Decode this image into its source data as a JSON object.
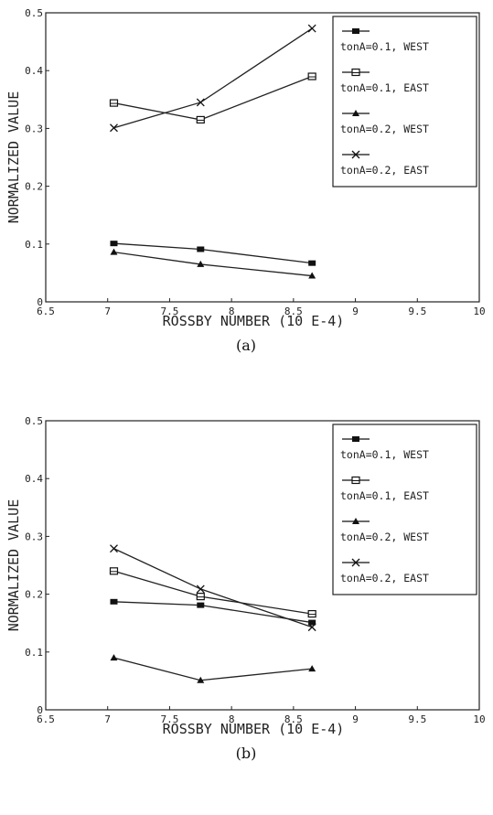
{
  "chart_data": [
    {
      "type": "line",
      "caption": "(a)",
      "xlabel": "ROSSBY NUMBER (10 E-4)",
      "ylabel": "NORMALIZED VALUE",
      "xlim": [
        6.5,
        10
      ],
      "ylim": [
        0,
        0.5
      ],
      "xticks": [
        "6.5",
        "7",
        "7.5",
        "8",
        "8.5",
        "9",
        "9.5",
        "10"
      ],
      "yticks": [
        "0",
        "0.1",
        "0.2",
        "0.3",
        "0.4",
        "0.5"
      ],
      "grid": false,
      "legend_position": "top-right",
      "x": [
        7.05,
        7.75,
        8.65
      ],
      "series": [
        {
          "name": "tonA=0.1, WEST",
          "marker": "filled-square",
          "values": [
            0.101,
            0.091,
            0.067
          ]
        },
        {
          "name": "tonA=0.1, EAST",
          "marker": "open-square",
          "values": [
            0.344,
            0.315,
            0.39
          ]
        },
        {
          "name": "tonA=0.2, WEST",
          "marker": "filled-triangle",
          "values": [
            0.086,
            0.065,
            0.045
          ]
        },
        {
          "name": "tonA=0.2, EAST",
          "marker": "x",
          "values": [
            0.301,
            0.345,
            0.473
          ]
        }
      ]
    },
    {
      "type": "line",
      "caption": "(b)",
      "xlabel": "ROSSBY NUMBER (10 E-4)",
      "ylabel": "NORMALIZED VALUE",
      "xlim": [
        6.5,
        10
      ],
      "ylim": [
        0,
        0.5
      ],
      "xticks": [
        "6.5",
        "7",
        "7.5",
        "8",
        "8.5",
        "9",
        "9.5",
        "10"
      ],
      "yticks": [
        "0",
        "0.1",
        "0.2",
        "0.3",
        "0.4",
        "0.5"
      ],
      "grid": false,
      "legend_position": "top-right",
      "x": [
        7.05,
        7.75,
        8.65
      ],
      "series": [
        {
          "name": "tonA=0.1, WEST",
          "marker": "filled-square",
          "values": [
            0.187,
            0.181,
            0.151
          ]
        },
        {
          "name": "tonA=0.1, EAST",
          "marker": "open-square",
          "values": [
            0.24,
            0.196,
            0.166
          ]
        },
        {
          "name": "tonA=0.2, WEST",
          "marker": "filled-triangle",
          "values": [
            0.09,
            0.051,
            0.071
          ]
        },
        {
          "name": "tonA=0.2, EAST",
          "marker": "x",
          "values": [
            0.279,
            0.209,
            0.143
          ]
        }
      ]
    }
  ]
}
